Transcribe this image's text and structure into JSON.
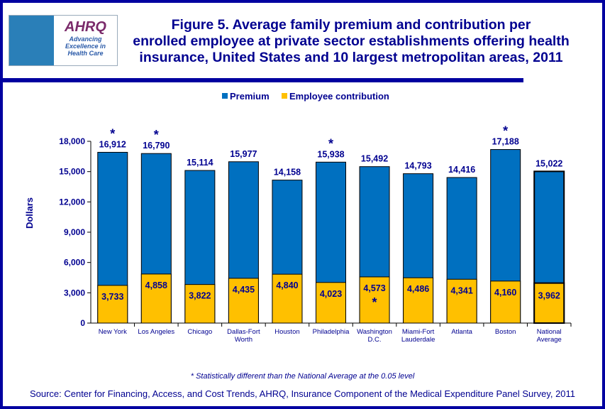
{
  "header": {
    "logo_text": [
      "AHRQ",
      "Advancing",
      "Excellence in",
      "Health Care"
    ],
    "title_lines": [
      "Figure 5. Average family premium and contribution per",
      "enrolled employee at private sector establishments offering health",
      "insurance, United States and 10 largest metropolitan areas, 2011"
    ]
  },
  "colors": {
    "premium": "#0070c0",
    "employee_contribution": "#ffc000",
    "text": "#000090",
    "frame": "#0000a0"
  },
  "chart_data": {
    "type": "bar",
    "mode": "overlapping",
    "ylabel": "Dollars",
    "ylim": [
      0,
      18000
    ],
    "yticks": [
      0,
      3000,
      6000,
      9000,
      12000,
      15000,
      18000
    ],
    "ytick_labels": [
      "0",
      "3,000",
      "6,000",
      "9,000",
      "12,000",
      "15,000",
      "18,000"
    ],
    "legend_placement": "top",
    "categories": [
      [
        "New York"
      ],
      [
        "Los Angeles"
      ],
      [
        "Chicago"
      ],
      [
        "Dallas-Fort",
        "Worth"
      ],
      [
        "Houston"
      ],
      [
        "Philadelphia"
      ],
      [
        "Washington",
        "D.C."
      ],
      [
        "Miami-Fort",
        "Lauderdale"
      ],
      [
        "Atlanta"
      ],
      [
        "Boston"
      ],
      [
        "National",
        "Average"
      ]
    ],
    "series": [
      {
        "name": "Premium",
        "values": [
          16912,
          16790,
          15114,
          15977,
          14158,
          15938,
          15492,
          14793,
          14416,
          17188,
          15022
        ],
        "labels": [
          "16,912",
          "16,790",
          "15,114",
          "15,977",
          "14,158",
          "15,938",
          "15,492",
          "14,793",
          "14,416",
          "17,188",
          "15,022"
        ],
        "significant": [
          true,
          true,
          false,
          false,
          false,
          true,
          false,
          false,
          false,
          true,
          false
        ]
      },
      {
        "name": "Employee contribution",
        "values": [
          3733,
          4858,
          3822,
          4435,
          4840,
          4023,
          4573,
          4486,
          4341,
          4160,
          3962
        ],
        "labels": [
          "3,733",
          "4,858",
          "3,822",
          "4,435",
          "4,840",
          "4,023",
          "4,573",
          "4,486",
          "4,341",
          "4,160",
          "3,962"
        ],
        "significant": [
          false,
          false,
          false,
          false,
          false,
          false,
          true,
          false,
          false,
          false,
          false
        ]
      }
    ],
    "significance_marker": "*"
  },
  "footnote": "* Statistically different than the National Average at the 0.05 level",
  "source": "Source: Center for Financing, Access, and Cost Trends, AHRQ, Insurance Component of the Medical Expenditure Panel Survey, 2011"
}
